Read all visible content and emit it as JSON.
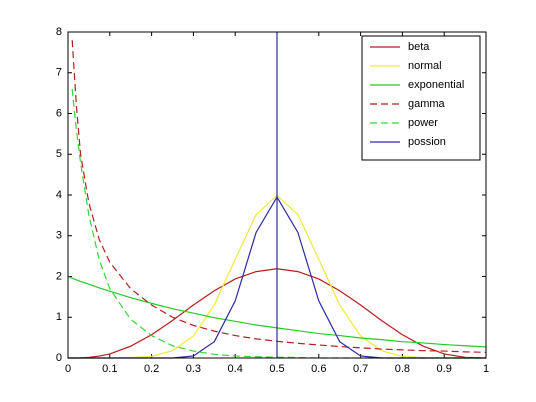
{
  "chart_data": {
    "type": "line",
    "x": [
      0,
      0.01,
      0.02,
      0.03,
      0.05,
      0.075,
      0.1,
      0.15,
      0.2,
      0.25,
      0.3,
      0.35,
      0.4,
      0.45,
      0.5,
      0.55,
      0.6,
      0.65,
      0.7,
      0.75,
      0.8,
      0.85,
      0.9,
      0.95,
      1
    ],
    "series": [
      {
        "name": "beta",
        "color": "#b81c1c",
        "dash": false,
        "values": [
          0,
          0,
          0,
          0.003,
          0.015,
          0.047,
          0.1,
          0.29,
          0.57,
          0.92,
          1.3,
          1.65,
          1.94,
          2.12,
          2.19,
          2.12,
          1.94,
          1.65,
          1.3,
          0.92,
          0.57,
          0.29,
          0.1,
          0.015,
          0
        ]
      },
      {
        "name": "normal",
        "color": "#f2e83a",
        "dash": false,
        "values": [
          0,
          0,
          0,
          0,
          0,
          0,
          0,
          0.01,
          0.04,
          0.18,
          0.54,
          1.3,
          2.42,
          3.52,
          3.99,
          3.52,
          2.42,
          1.3,
          0.54,
          0.18,
          0.04,
          0.01,
          0,
          0,
          0
        ]
      },
      {
        "name": "exponential",
        "color": "#22cc22",
        "dash": false,
        "values": [
          2,
          1.96,
          1.92,
          1.88,
          1.81,
          1.72,
          1.64,
          1.48,
          1.34,
          1.21,
          1.1,
          0.99,
          0.9,
          0.81,
          0.74,
          0.67,
          0.6,
          0.55,
          0.49,
          0.45,
          0.4,
          0.37,
          0.33,
          0.3,
          0.27
        ]
      },
      {
        "name": "gamma",
        "color": "#b81c1c",
        "dash": true,
        "values": [
          null,
          7.8,
          6.2,
          5.0,
          3.8,
          2.9,
          2.35,
          1.7,
          1.3,
          1.0,
          0.8,
          0.66,
          0.55,
          0.47,
          0.41,
          0.36,
          0.32,
          0.28,
          0.25,
          0.22,
          0.2,
          0.18,
          0.17,
          0.15,
          0.14
        ]
      },
      {
        "name": "power",
        "color": "#33d633",
        "dash": true,
        "values": [
          null,
          6.6,
          5.6,
          4.8,
          3.5,
          2.4,
          1.7,
          0.95,
          0.55,
          0.3,
          0.17,
          0.09,
          0.05,
          0.03,
          0.02,
          0.01,
          0,
          0,
          0,
          0,
          0,
          0,
          0,
          0,
          0
        ]
      },
      {
        "name": "possion",
        "color": "#2a2aa6",
        "dash": false,
        "values": [
          0,
          0,
          0,
          0,
          0,
          0,
          0,
          0,
          0,
          0,
          0.05,
          0.4,
          1.4,
          3.08,
          3.95,
          3.08,
          1.4,
          0.4,
          0.05,
          0,
          0,
          0,
          0,
          0,
          0
        ]
      }
    ],
    "vline": {
      "x": 0.5,
      "color": "#2a2aa6"
    },
    "xlim": [
      0,
      1
    ],
    "xticks": [
      0,
      0.1,
      0.2,
      0.3,
      0.4,
      0.5,
      0.6,
      0.7,
      0.8,
      0.9,
      1
    ],
    "ylim": [
      0,
      8
    ],
    "yticks": [
      0,
      1,
      2,
      3,
      4,
      5,
      6,
      7,
      8
    ],
    "legend": "upper right",
    "grid": false
  }
}
